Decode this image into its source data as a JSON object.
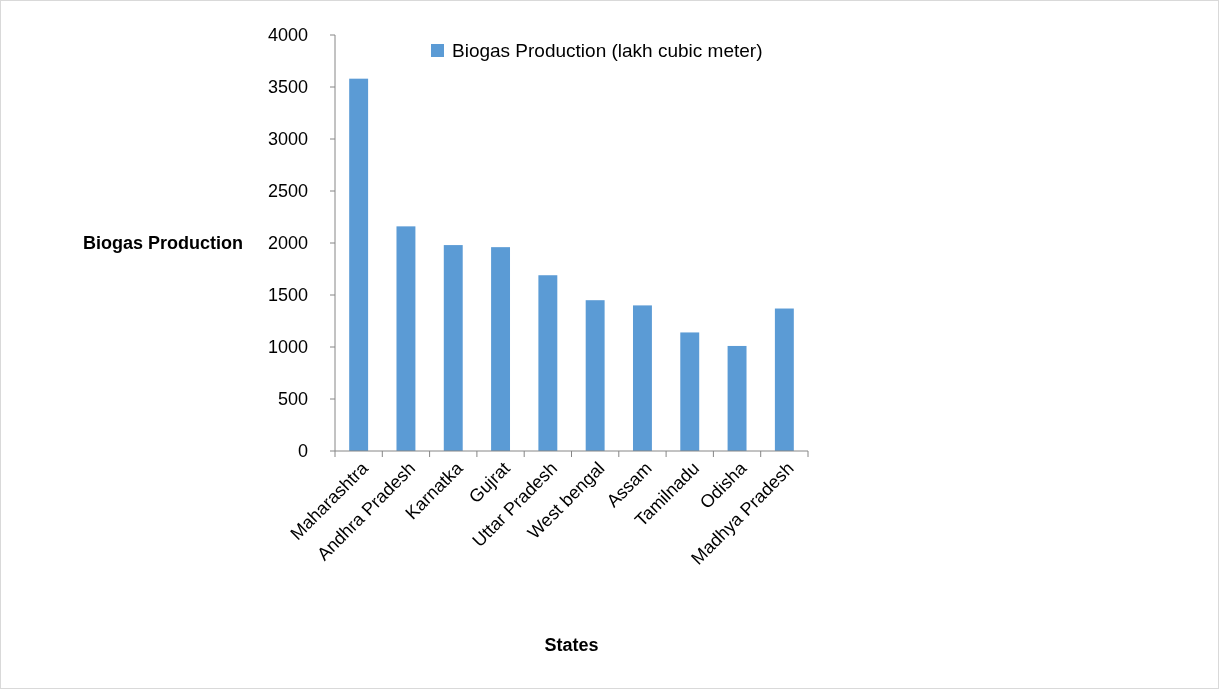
{
  "chart_data": {
    "type": "bar",
    "xlabel": "States",
    "ylabel": "Biogas Production",
    "categories": [
      "Maharashtra",
      "Andhra Pradesh",
      "Karnatka",
      "Gujrat",
      "Uttar Pradesh",
      "West bengal",
      "Assam",
      "Tamilnadu",
      "Odisha",
      "Madhya Pradesh"
    ],
    "series": [
      {
        "name": "Biogas Production (lakh cubic meter)",
        "color": "#5b9bd5",
        "values": [
          3580,
          2160,
          1980,
          1960,
          1690,
          1450,
          1400,
          1140,
          1010,
          1370
        ]
      }
    ],
    "ylim": [
      0,
      4000
    ],
    "yticks": [
      0,
      500,
      1000,
      1500,
      2000,
      2500,
      3000,
      3500,
      4000
    ],
    "legend": "top"
  }
}
